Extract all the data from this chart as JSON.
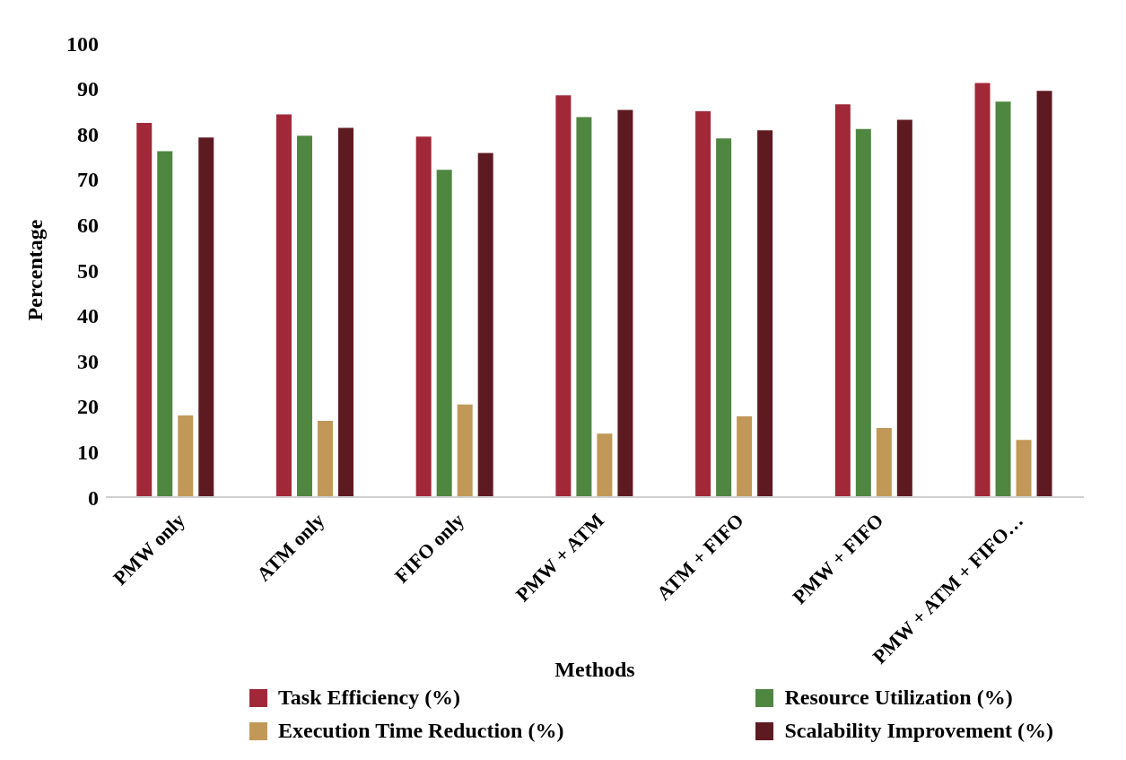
{
  "chart_data": {
    "type": "bar",
    "xlabel": "Methods",
    "ylabel": "Percentage",
    "categories": [
      "PMW only",
      "ATM only",
      "FIFO only",
      "PMW + ATM",
      "ATM + FIFO",
      "PMW + FIFO",
      "PMW + ATM + FIFO…"
    ],
    "series": [
      {
        "name": "Task Efficiency (%)",
        "color": "#a12838",
        "values": [
          82.4,
          84.3,
          79.4,
          88.5,
          85,
          86.5,
          91.2
        ]
      },
      {
        "name": "Resource Utilization (%)",
        "color": "#4f8640",
        "values": [
          76.2,
          79.6,
          72.1,
          83.7,
          79,
          81.1,
          87.1
        ]
      },
      {
        "name": "Execution Time Reduction (%)",
        "color": "#c29858",
        "values": [
          18,
          16.8,
          20.4,
          14,
          17.8,
          15.2,
          12.6
        ]
      },
      {
        "name": "Scalability Improvement (%)",
        "color": "#5e1a21",
        "values": [
          79.2,
          81.3,
          75.8,
          85.3,
          80.8,
          83.1,
          89.5
        ]
      }
    ],
    "ylim": [
      0,
      100
    ],
    "yticks": [
      0,
      10,
      20,
      30,
      40,
      50,
      60,
      70,
      80,
      90,
      100
    ],
    "grid": false,
    "legend": "bottom"
  }
}
